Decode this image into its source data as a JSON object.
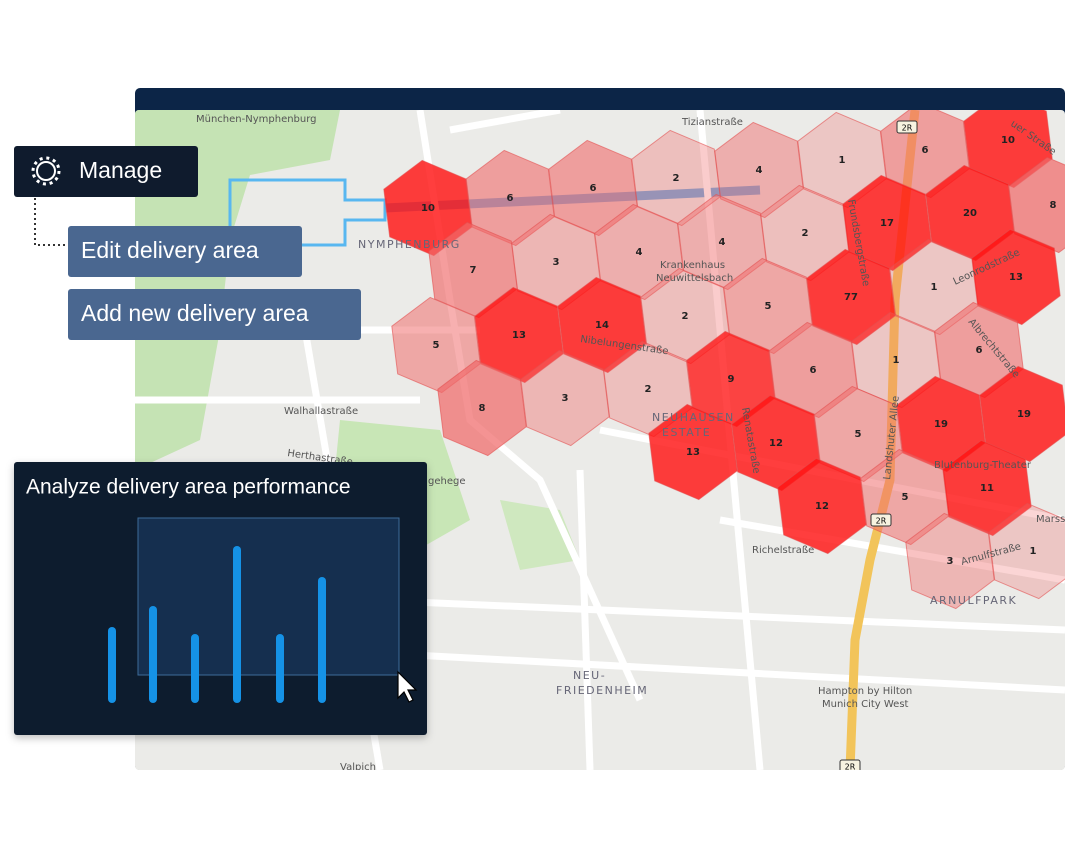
{
  "menu": {
    "manage": "Manage",
    "edit": "Edit delivery area",
    "add": "Add new delivery area"
  },
  "map": {
    "labels": {
      "nymphenburg_palace": "München-Nymphenburg",
      "tizian": "Tizianstraße",
      "dachauer": "uer Straße",
      "nymphenburg": "NYMPHENBURG",
      "hospital": [
        "Krankenhaus",
        "Neuwittelsbach"
      ],
      "nibelungen": "Nibelungenstraße",
      "walhalla": "Walhallastraße",
      "hertha": "Herthastraße",
      "gehege": "gehege",
      "neuhausen": [
        "NEUHAUSEN",
        "ESTATE"
      ],
      "renata": "Renatastraße",
      "landshuter": "Landshuter Allee",
      "leonrod": "Leonrodstraße",
      "albrecht": "Albrechtstraße",
      "theater": "Blutenburg-Theater",
      "richel": "Richelstraße",
      "arnulf": "Arnulfstraße",
      "arnulfpark": "ARNULFPARK",
      "marss": "Marss",
      "friedenheim": [
        "NEU-",
        "FRIEDENHEIM"
      ],
      "hotel": [
        "Hampton by Hilton",
        "Munich City West"
      ],
      "valpich": "Valpich",
      "prinz": "Frundsbergstraße",
      "road_2r_a": "2R",
      "road_2r_b": "2R",
      "road_2r_c": "2R"
    },
    "hex_values": [
      10,
      6,
      6,
      2,
      4,
      1,
      6,
      10,
      7,
      3,
      4,
      4,
      2,
      17,
      20,
      8,
      5,
      13,
      14,
      2,
      5,
      77,
      1,
      13,
      8,
      3,
      2,
      9,
      6,
      1,
      6,
      13,
      12,
      5,
      19,
      19,
      12,
      5,
      11,
      3,
      1
    ]
  },
  "chart_data": {
    "type": "bar",
    "title": "Analyze delivery area performance",
    "values": [
      76,
      97,
      69,
      157,
      69,
      126
    ],
    "color": "#1592e6"
  }
}
